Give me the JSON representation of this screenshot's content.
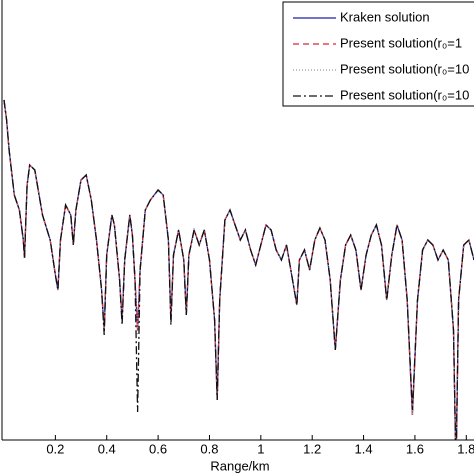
{
  "chart_data": {
    "type": "line",
    "xlabel": "Range/km",
    "x": [
      0.0,
      0.01,
      0.02,
      0.04,
      0.06,
      0.075,
      0.08,
      0.09,
      0.1,
      0.12,
      0.15,
      0.18,
      0.2,
      0.21,
      0.22,
      0.24,
      0.26,
      0.27,
      0.28,
      0.3,
      0.32,
      0.34,
      0.36,
      0.38,
      0.39,
      0.4,
      0.42,
      0.43,
      0.45,
      0.46,
      0.47,
      0.49,
      0.5,
      0.51,
      0.52,
      0.53,
      0.55,
      0.57,
      0.6,
      0.62,
      0.64,
      0.65,
      0.66,
      0.68,
      0.7,
      0.71,
      0.72,
      0.74,
      0.76,
      0.78,
      0.8,
      0.82,
      0.83,
      0.84,
      0.86,
      0.88,
      0.9,
      0.92,
      0.94,
      0.96,
      0.98,
      1.0,
      1.02,
      1.04,
      1.06,
      1.08,
      1.1,
      1.12,
      1.14,
      1.15,
      1.17,
      1.19,
      1.21,
      1.23,
      1.25,
      1.27,
      1.29,
      1.31,
      1.33,
      1.35,
      1.37,
      1.39,
      1.41,
      1.43,
      1.45,
      1.47,
      1.49,
      1.51,
      1.53,
      1.55,
      1.57,
      1.59,
      1.61,
      1.63,
      1.65,
      1.67,
      1.69,
      1.71,
      1.73,
      1.75,
      1.76,
      1.77,
      1.79,
      1.81,
      1.83
    ],
    "series": [
      {
        "name": "Kraken solution",
        "color": "#1f1fa8",
        "dash": "none",
        "values": [
          100,
          120,
          150,
          195,
          210,
          240,
          258,
          185,
          165,
          170,
          215,
          240,
          275,
          290,
          240,
          205,
          215,
          245,
          210,
          180,
          175,
          200,
          240,
          290,
          330,
          255,
          215,
          225,
          280,
          320,
          260,
          215,
          235,
          280,
          330,
          270,
          210,
          200,
          190,
          195,
          240,
          320,
          255,
          230,
          260,
          315,
          255,
          230,
          245,
          230,
          260,
          320,
          400,
          300,
          220,
          210,
          225,
          240,
          230,
          250,
          265,
          245,
          225,
          230,
          250,
          260,
          245,
          275,
          305,
          260,
          250,
          270,
          240,
          228,
          240,
          280,
          350,
          280,
          245,
          235,
          250,
          290,
          255,
          235,
          225,
          245,
          300,
          255,
          225,
          240,
          300,
          415,
          300,
          250,
          240,
          245,
          260,
          250,
          260,
          330,
          470,
          300,
          245,
          240,
          260
        ]
      },
      {
        "name": "Present solution(r₀=1",
        "color": "#e0202a",
        "dash": "6,4",
        "values": [
          100,
          120,
          150,
          195,
          210,
          240,
          258,
          185,
          165,
          170,
          215,
          240,
          275,
          290,
          240,
          205,
          215,
          245,
          210,
          180,
          175,
          200,
          240,
          290,
          330,
          255,
          215,
          225,
          280,
          320,
          260,
          215,
          235,
          280,
          330,
          270,
          210,
          200,
          190,
          195,
          240,
          320,
          255,
          230,
          260,
          315,
          255,
          230,
          245,
          230,
          260,
          320,
          400,
          300,
          220,
          210,
          225,
          240,
          230,
          250,
          265,
          245,
          225,
          230,
          250,
          260,
          245,
          275,
          305,
          260,
          250,
          270,
          240,
          228,
          240,
          280,
          350,
          280,
          245,
          235,
          250,
          290,
          255,
          235,
          225,
          245,
          300,
          255,
          225,
          240,
          300,
          415,
          300,
          250,
          240,
          245,
          260,
          250,
          260,
          330,
          470,
          300,
          245,
          240,
          260
        ]
      },
      {
        "name": "Present solution(r₀=10",
        "color": "#9a9a9a",
        "dash": "1,2",
        "values": [
          100,
          120,
          150,
          195,
          210,
          240,
          258,
          185,
          165,
          170,
          215,
          240,
          275,
          290,
          240,
          205,
          215,
          245,
          210,
          180,
          175,
          200,
          240,
          290,
          332,
          255,
          215,
          225,
          280,
          322,
          260,
          215,
          235,
          280,
          335,
          270,
          210,
          200,
          190,
          195,
          240,
          322,
          255,
          230,
          260,
          315,
          255,
          230,
          245,
          230,
          260,
          320,
          400,
          300,
          220,
          210,
          225,
          240,
          230,
          250,
          265,
          245,
          225,
          230,
          250,
          260,
          245,
          275,
          305,
          260,
          250,
          270,
          240,
          228,
          240,
          280,
          350,
          280,
          245,
          235,
          250,
          290,
          255,
          235,
          225,
          245,
          300,
          255,
          225,
          240,
          300,
          415,
          300,
          250,
          240,
          245,
          260,
          250,
          260,
          330,
          470,
          300,
          245,
          240,
          260
        ]
      },
      {
        "name": "Present solution(r₀=10",
        "color": "#111111",
        "dash": "8,3,2,3",
        "values": [
          100,
          120,
          150,
          195,
          210,
          240,
          258,
          185,
          165,
          170,
          215,
          240,
          275,
          290,
          240,
          205,
          215,
          245,
          210,
          180,
          175,
          200,
          240,
          290,
          335,
          255,
          215,
          225,
          280,
          325,
          260,
          215,
          235,
          280,
          412,
          270,
          210,
          200,
          190,
          195,
          240,
          325,
          255,
          230,
          260,
          315,
          255,
          230,
          245,
          230,
          260,
          320,
          400,
          300,
          220,
          210,
          225,
          240,
          230,
          250,
          265,
          245,
          225,
          230,
          250,
          260,
          245,
          275,
          305,
          260,
          250,
          270,
          240,
          228,
          240,
          280,
          350,
          280,
          245,
          235,
          250,
          290,
          255,
          235,
          225,
          245,
          300,
          255,
          225,
          240,
          300,
          410,
          300,
          250,
          240,
          245,
          260,
          250,
          260,
          330,
          470,
          300,
          245,
          240,
          260
        ]
      }
    ],
    "xlim": [
      0,
      1.83
    ],
    "ylim": [
      440,
      0
    ],
    "xticks": [
      {
        "value": 0.2,
        "label": "0.2"
      },
      {
        "value": 0.4,
        "label": "0.4"
      },
      {
        "value": 0.6,
        "label": "0.6"
      },
      {
        "value": 0.8,
        "label": "0.8"
      },
      1,
      {
        "value": 1.2,
        "label": "1.2"
      },
      {
        "value": 1.4,
        "label": "1.4"
      },
      {
        "value": 1.6,
        "label": "1.6"
      },
      {
        "value": 1.8,
        "label": "1.8"
      }
    ],
    "legend": "upper right"
  }
}
